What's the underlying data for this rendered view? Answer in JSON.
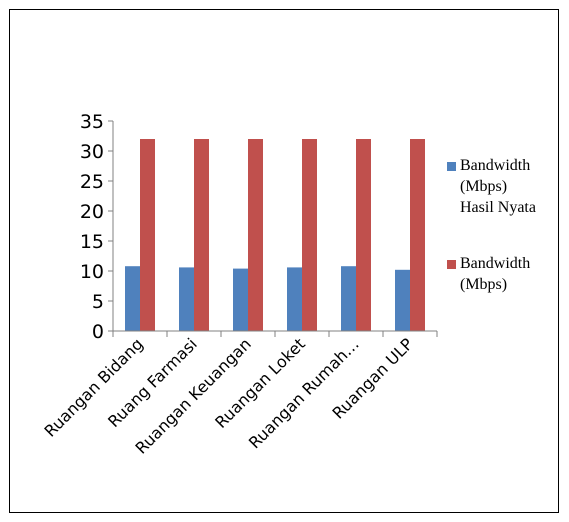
{
  "chart_data": {
    "type": "bar",
    "title": "",
    "xlabel": "",
    "ylabel": "",
    "ylim": [
      0,
      35
    ],
    "yticks": [
      0,
      5,
      10,
      15,
      20,
      25,
      30,
      35
    ],
    "grid": false,
    "legend_position": "right",
    "categories": [
      "Ruangan Bidang",
      "Ruang Farmasi",
      "Ruangan Keuangan",
      "Ruangan Loket",
      "Ruangan Rumah…",
      "Ruangan ULP"
    ],
    "series": [
      {
        "name": "Bandwidth (Mbps) Hasil Nyata",
        "legend_lines": [
          "Bandwidth",
          "(Mbps)",
          "Hasil Nyata"
        ],
        "color": "#4f81bd",
        "values": [
          10.8,
          10.6,
          10.4,
          10.6,
          10.8,
          10.2
        ]
      },
      {
        "name": "Bandwidth (Mbps)",
        "legend_lines": [
          "Bandwidth",
          "(Mbps)"
        ],
        "color": "#c0504d",
        "values": [
          32,
          32,
          32,
          32,
          32,
          32
        ]
      }
    ]
  }
}
